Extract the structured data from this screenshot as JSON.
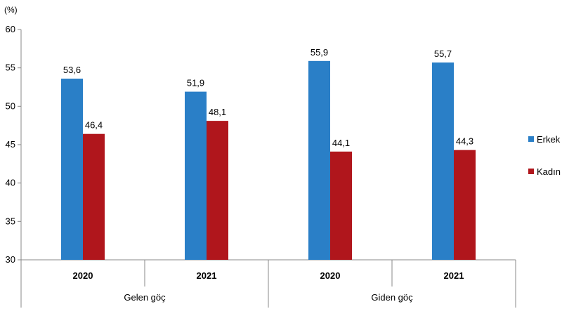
{
  "chart_data": {
    "type": "bar",
    "unit_label": "(%)",
    "groups": [
      {
        "label": "Gelen göç",
        "categories": [
          "2020",
          "2021"
        ]
      },
      {
        "label": "Giden göç",
        "categories": [
          "2020",
          "2021"
        ]
      }
    ],
    "series": [
      {
        "name": "Erkek",
        "color": "#2A7FC7",
        "values": [
          53.6,
          51.9,
          55.9,
          55.7
        ],
        "labels": [
          "53,6",
          "51,9",
          "55,9",
          "55,7"
        ]
      },
      {
        "name": "Kadın",
        "color": "#B0161C",
        "values": [
          46.4,
          48.1,
          44.1,
          44.3
        ],
        "labels": [
          "46,4",
          "48,1",
          "44,1",
          "44,3"
        ]
      }
    ],
    "ylim": [
      30,
      60
    ],
    "yticks": [
      "30",
      "35",
      "40",
      "45",
      "50",
      "55",
      "60"
    ],
    "grid": false,
    "legend_position": "right"
  }
}
